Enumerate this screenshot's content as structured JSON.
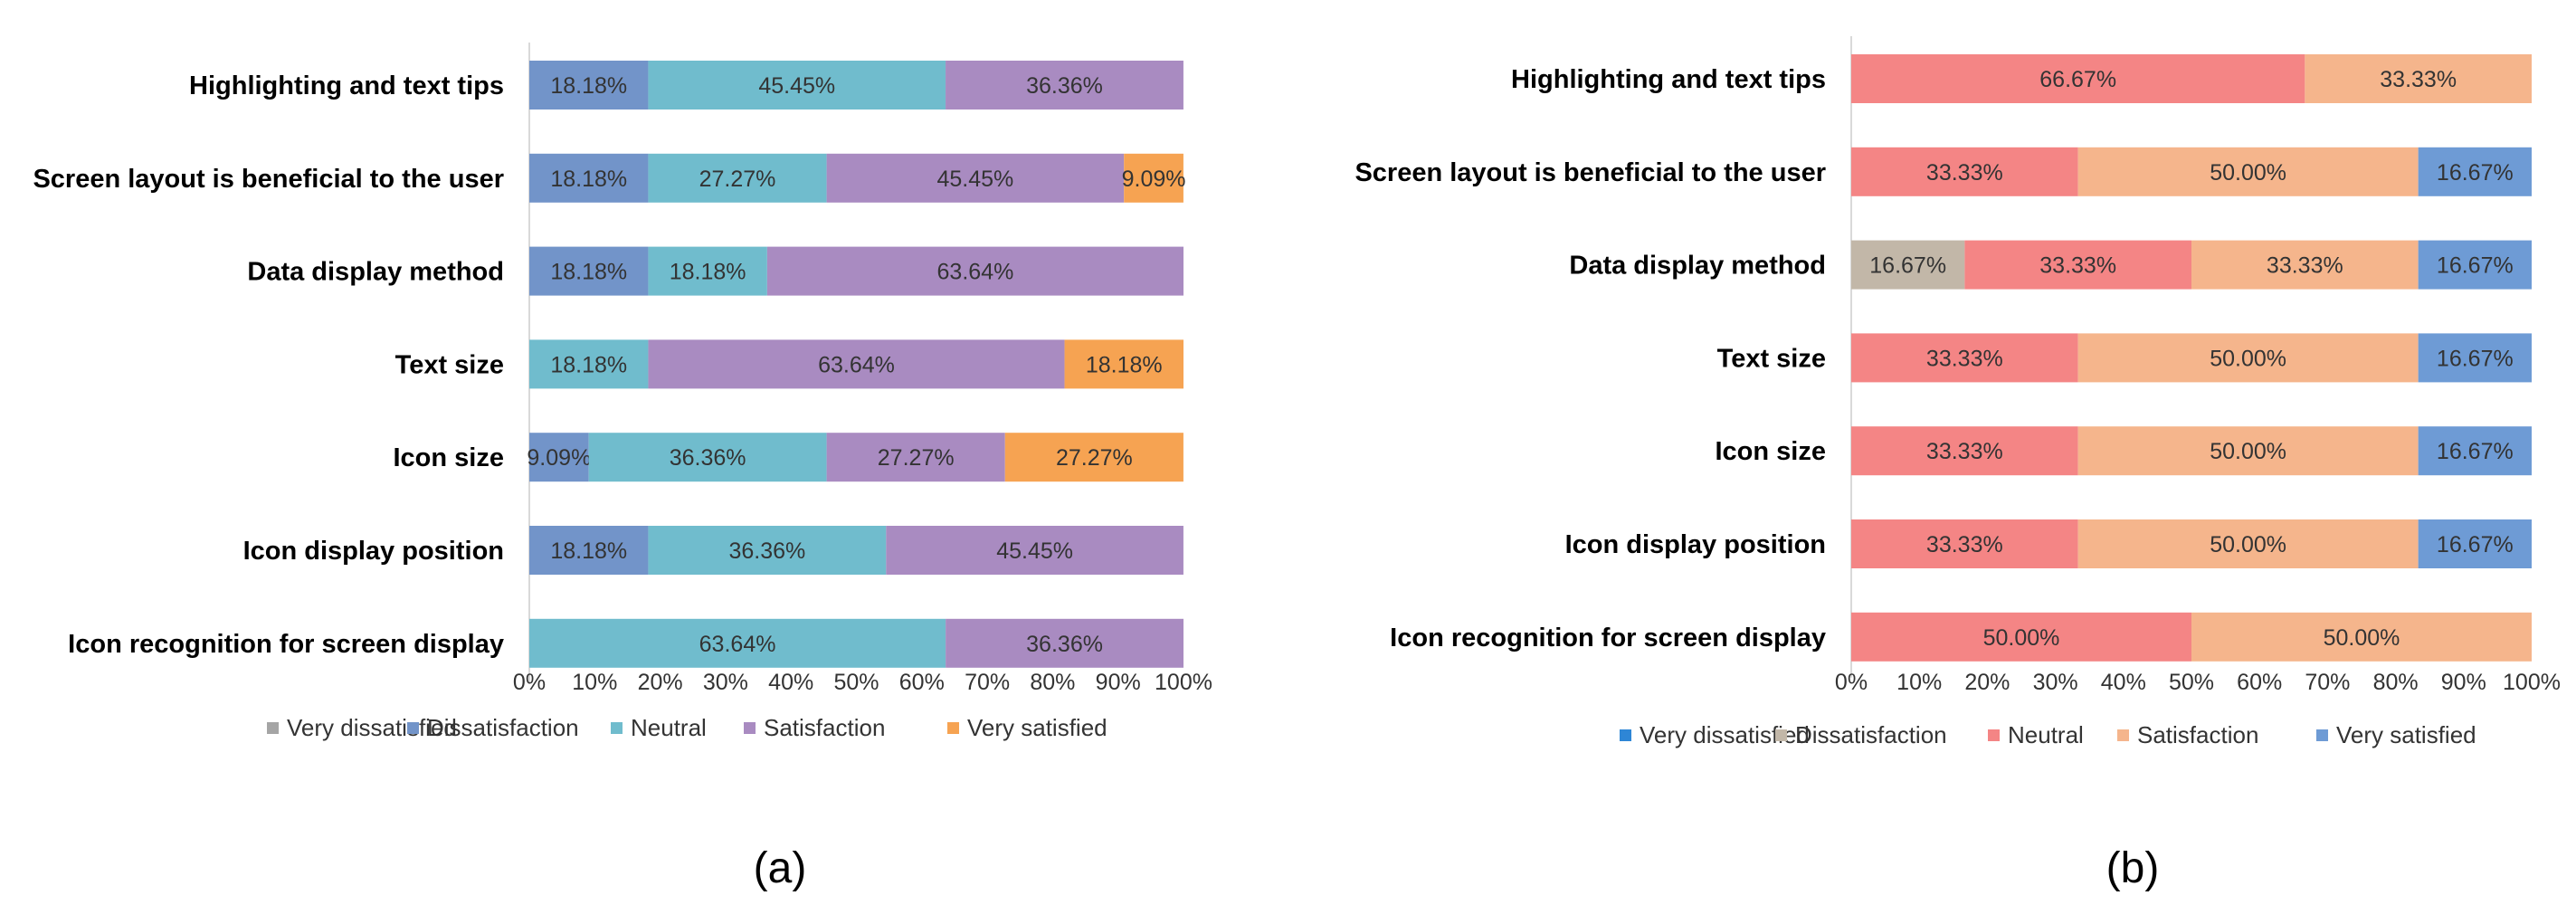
{
  "chart_data": [
    {
      "type": "bar",
      "orientation": "horizontal-stacked-100",
      "panel": "(a)",
      "categories": [
        "Highlighting and text tips",
        "Screen layout is beneficial to the user",
        "Data display method",
        "Text size",
        "Icon size",
        "Icon display position",
        "Icon recognition for screen display"
      ],
      "series": [
        {
          "name": "Very dissatisfied",
          "color": "#a5a5a5",
          "values": [
            0,
            0,
            0,
            0,
            0,
            0,
            0
          ]
        },
        {
          "name": "Dissatisfaction",
          "color": "#7294c9",
          "values": [
            18.18,
            18.18,
            18.18,
            0,
            9.09,
            18.18,
            0
          ]
        },
        {
          "name": "Neutral",
          "color": "#70bccd",
          "values": [
            45.45,
            27.27,
            18.18,
            18.18,
            36.36,
            36.36,
            63.64
          ]
        },
        {
          "name": "Satisfaction",
          "color": "#a98bc1",
          "values": [
            36.36,
            45.45,
            63.64,
            63.64,
            27.27,
            45.45,
            36.36
          ]
        },
        {
          "name": "Very satisfied",
          "color": "#f6a352",
          "values": [
            0,
            9.09,
            0,
            18.18,
            27.27,
            0,
            0
          ]
        }
      ],
      "x_ticks": [
        "0%",
        "10%",
        "20%",
        "30%",
        "40%",
        "50%",
        "60%",
        "70%",
        "80%",
        "90%",
        "100%"
      ],
      "xlim": [
        0,
        100
      ],
      "legend_position": "bottom"
    },
    {
      "type": "bar",
      "orientation": "horizontal-stacked-100",
      "panel": "(b)",
      "categories": [
        "Highlighting and text tips",
        "Screen layout is beneficial to the user",
        "Data display method",
        "Text size",
        "Icon size",
        "Icon display position",
        "Icon recognition for screen display"
      ],
      "series": [
        {
          "name": "Very dissatisfied",
          "color": "#2e86d6",
          "values": [
            0,
            0,
            0,
            0,
            0,
            0,
            0
          ]
        },
        {
          "name": "Dissatisfaction",
          "color": "#c2b7a8",
          "values": [
            0,
            0,
            16.67,
            0,
            0,
            0,
            0
          ]
        },
        {
          "name": "Neutral",
          "color": "#f48585",
          "values": [
            66.67,
            33.33,
            33.33,
            33.33,
            33.33,
            33.33,
            50.0
          ]
        },
        {
          "name": "Satisfaction",
          "color": "#f5b58c",
          "values": [
            33.33,
            50.0,
            33.33,
            50.0,
            50.0,
            50.0,
            50.0
          ]
        },
        {
          "name": "Very satisfied",
          "color": "#6e9bd5",
          "values": [
            0,
            16.67,
            16.67,
            16.67,
            16.67,
            16.67,
            0
          ]
        }
      ],
      "x_ticks": [
        "0%",
        "10%",
        "20%",
        "30%",
        "40%",
        "50%",
        "60%",
        "70%",
        "80%",
        "90%",
        "100%"
      ],
      "xlim": [
        0,
        100
      ],
      "legend_position": "bottom"
    }
  ]
}
